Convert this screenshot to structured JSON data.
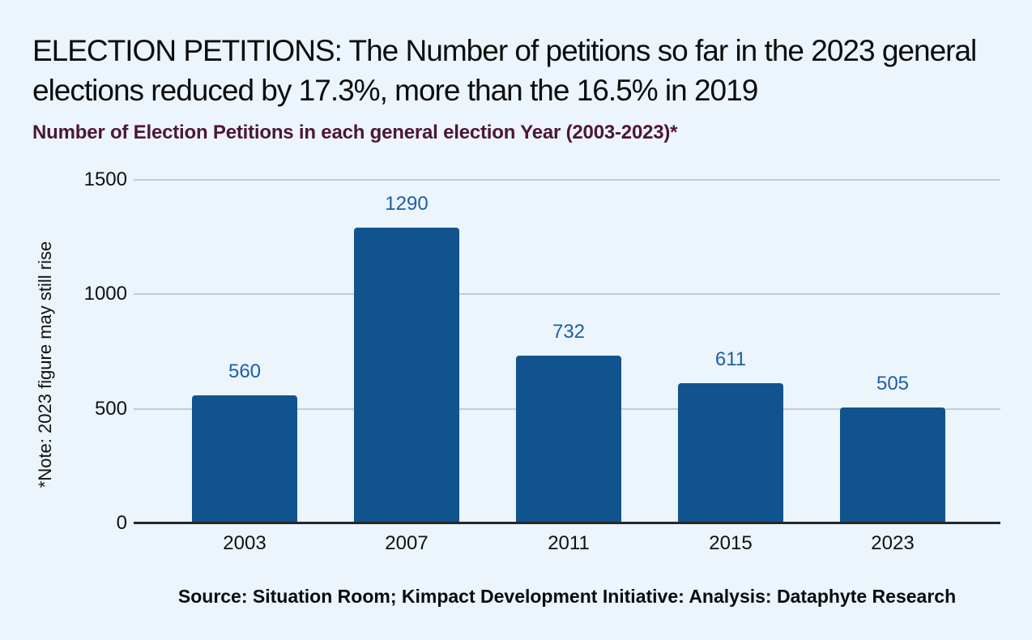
{
  "header": {
    "title": "ELECTION PETITIONS: The Number of petitions so far in the 2023 general elections reduced by 17.3%, more than the 16.5% in 2019",
    "subtitle": "Number of Election Petitions in each general election Year (2003-2023)*"
  },
  "chart_data": {
    "type": "bar",
    "categories": [
      "2003",
      "2007",
      "2011",
      "2015",
      "2023"
    ],
    "values": [
      560,
      1290,
      732,
      611,
      505
    ],
    "title": "Number of Election Petitions in each general election Year (2003-2023)*",
    "xlabel": "",
    "ylabel": "*Note: 2023 figure may still rise",
    "ylim": [
      0,
      1500
    ],
    "yticks": [
      0,
      500,
      1000,
      1500
    ],
    "grid": true,
    "legend": "none",
    "bar_color": "#11538f",
    "value_label_color": "#1c5fa8"
  },
  "footer": {
    "source": "Source: Situation Room; Kimpact Development Initiative: Analysis: Dataphyte Research"
  },
  "colors": {
    "background": "#ecf4fc",
    "subtitle": "#4c1638",
    "gridline": "#c6cbd1",
    "axis": "#24272b",
    "text": "#111111"
  }
}
